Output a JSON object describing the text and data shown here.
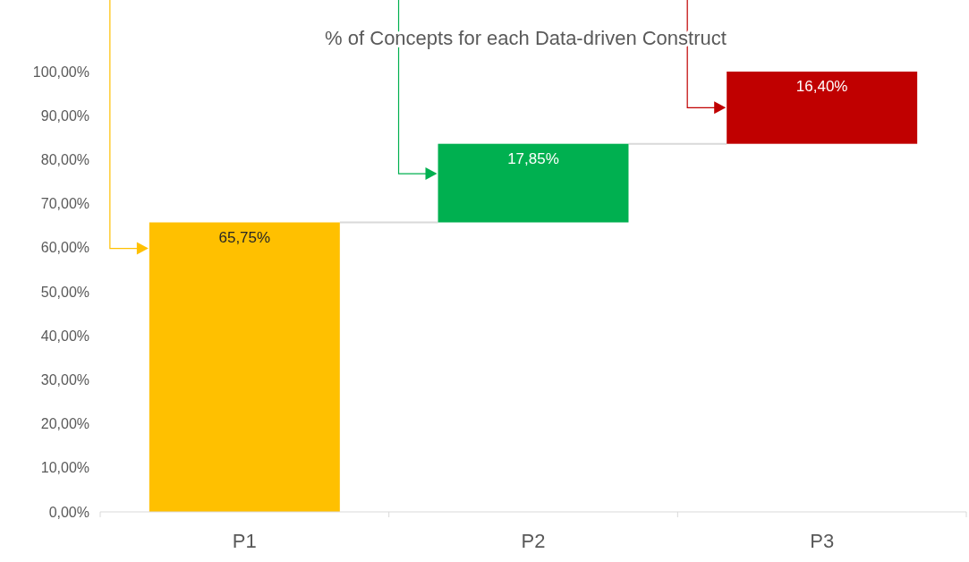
{
  "chart_data": {
    "type": "bar",
    "title": "% of Concepts for each Data-driven Construct",
    "categories": [
      "P1",
      "P2",
      "P3"
    ],
    "values": [
      65.75,
      17.85,
      16.4
    ],
    "base": [
      0,
      65.75,
      83.6
    ],
    "colors": [
      "#ffc000",
      "#00b050",
      "#c00000"
    ],
    "value_labels": [
      "65,75%",
      "17,85%",
      "16,40%"
    ],
    "ylim": [
      0,
      100
    ],
    "yticks": [
      {
        "value": 0,
        "label": "0,00%"
      },
      {
        "value": 10,
        "label": "10,00%"
      },
      {
        "value": 20,
        "label": "20,00%"
      },
      {
        "value": 30,
        "label": "30,00%"
      },
      {
        "value": 40,
        "label": "40,00%"
      },
      {
        "value": 50,
        "label": "50,00%"
      },
      {
        "value": 60,
        "label": "60,00%"
      },
      {
        "value": 70,
        "label": "70,00%"
      },
      {
        "value": 80,
        "label": "80,00%"
      },
      {
        "value": 90,
        "label": "90,00%"
      },
      {
        "value": 100,
        "label": "100,00%"
      }
    ],
    "grid": false
  }
}
